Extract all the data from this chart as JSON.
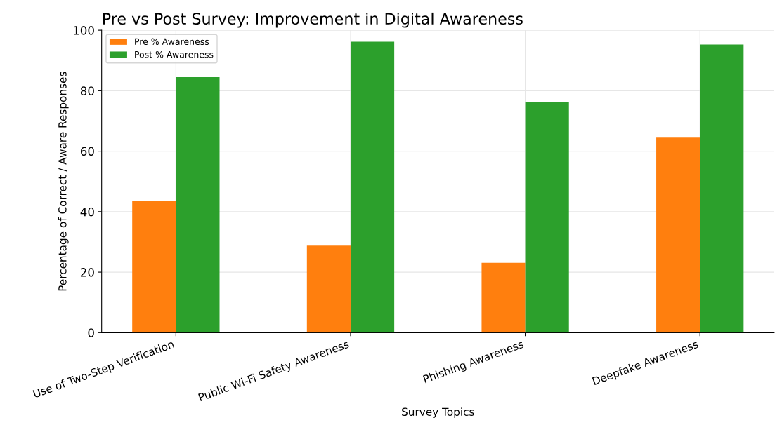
{
  "chart_data": {
    "type": "bar",
    "title": "Pre vs Post Survey: Improvement in Digital Awareness",
    "xlabel": "Survey Topics",
    "ylabel": "Percentage of Correct / Aware Responses",
    "categories": [
      "Use of Two-Step Verification",
      "Public Wi-Fi Safety Awareness",
      "Phishing Awareness",
      "Deepfake Awareness"
    ],
    "series": [
      {
        "name": "Pre % Awareness",
        "color": "#ff7f0e",
        "values": [
          43.5,
          28.8,
          23.1,
          64.5
        ]
      },
      {
        "name": "Post % Awareness",
        "color": "#2ca02c",
        "values": [
          84.5,
          96.2,
          76.4,
          95.3
        ]
      }
    ],
    "ylim": [
      0,
      100
    ],
    "yticks": [
      0,
      20,
      40,
      60,
      80,
      100
    ],
    "grid": true,
    "legend": "top left"
  }
}
